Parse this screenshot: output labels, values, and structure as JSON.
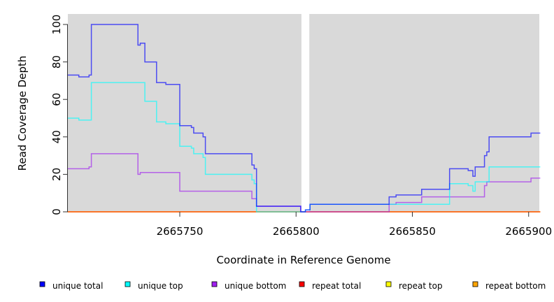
{
  "chart_data": {
    "type": "line",
    "step": true,
    "xlabel": "Coordinate in Reference Genome",
    "ylabel": "Read Coverage Depth",
    "xlim": [
      2665701.8,
      2665905
    ],
    "ylim": [
      0,
      105
    ],
    "xticks": [
      2665750,
      2665800,
      2665850,
      2665900
    ],
    "yticks": [
      0,
      20,
      40,
      60,
      80,
      100
    ],
    "gap": [
      2665802,
      2665806
    ],
    "legend_position": "bottom",
    "series": [
      {
        "name": "unique total",
        "color": "#0000ff",
        "points": [
          [
            2665701.8,
            73
          ],
          [
            2665706.6,
            72
          ],
          [
            2665711,
            73
          ],
          [
            2665712,
            100
          ],
          [
            2665732,
            89
          ],
          [
            2665733,
            90
          ],
          [
            2665735,
            80
          ],
          [
            2665740,
            69
          ],
          [
            2665744,
            68
          ],
          [
            2665750,
            46
          ],
          [
            2665755,
            45
          ],
          [
            2665756,
            42
          ],
          [
            2665760,
            40
          ],
          [
            2665761,
            31
          ],
          [
            2665781,
            25
          ],
          [
            2665782,
            23
          ],
          [
            2665783,
            3
          ],
          [
            2665802,
            0
          ],
          [
            2665804,
            1
          ],
          [
            2665806,
            4
          ],
          [
            2665840,
            8
          ],
          [
            2665843,
            9
          ],
          [
            2665854,
            12
          ],
          [
            2665866,
            23
          ],
          [
            2665874,
            22
          ],
          [
            2665876,
            19
          ],
          [
            2665877,
            24
          ],
          [
            2665881,
            30
          ],
          [
            2665882,
            32
          ],
          [
            2665883,
            40
          ],
          [
            2665901,
            42
          ],
          [
            2665905,
            42
          ]
        ]
      },
      {
        "name": "unique top",
        "color": "#00ffff",
        "points": [
          [
            2665701.8,
            50
          ],
          [
            2665706.6,
            49
          ],
          [
            2665712,
            69
          ],
          [
            2665735,
            59
          ],
          [
            2665740,
            48
          ],
          [
            2665744,
            47
          ],
          [
            2665750,
            35
          ],
          [
            2665755,
            34
          ],
          [
            2665756,
            31
          ],
          [
            2665760,
            29
          ],
          [
            2665761,
            20
          ],
          [
            2665781,
            17
          ],
          [
            2665782,
            15
          ],
          [
            2665783,
            0
          ],
          [
            2665804,
            1
          ],
          [
            2665806,
            4
          ],
          [
            2665866,
            15
          ],
          [
            2665874,
            14
          ],
          [
            2665876,
            11
          ],
          [
            2665877,
            16
          ],
          [
            2665883,
            24
          ],
          [
            2665905,
            24
          ]
        ]
      },
      {
        "name": "unique bottom",
        "color": "#a020f0",
        "points": [
          [
            2665701.8,
            23
          ],
          [
            2665711,
            24
          ],
          [
            2665712,
            31
          ],
          [
            2665732,
            20
          ],
          [
            2665733,
            21
          ],
          [
            2665750,
            11
          ],
          [
            2665781,
            7
          ],
          [
            2665783,
            3
          ],
          [
            2665802,
            0
          ],
          [
            2665840,
            4
          ],
          [
            2665843,
            5
          ],
          [
            2665854,
            8
          ],
          [
            2665881,
            14
          ],
          [
            2665882,
            16
          ],
          [
            2665901,
            18
          ],
          [
            2665905,
            18
          ]
        ]
      },
      {
        "name": "repeat total",
        "color": "#ff0000",
        "points": [
          [
            2665701.8,
            0
          ],
          [
            2665905,
            0
          ]
        ]
      },
      {
        "name": "repeat top",
        "color": "#ffff00",
        "points": [
          [
            2665701.8,
            0
          ],
          [
            2665905,
            0
          ]
        ]
      },
      {
        "name": "repeat bottom",
        "color": "#ffa500",
        "points": [
          [
            2665701.8,
            0
          ],
          [
            2665905,
            0
          ]
        ]
      }
    ]
  }
}
